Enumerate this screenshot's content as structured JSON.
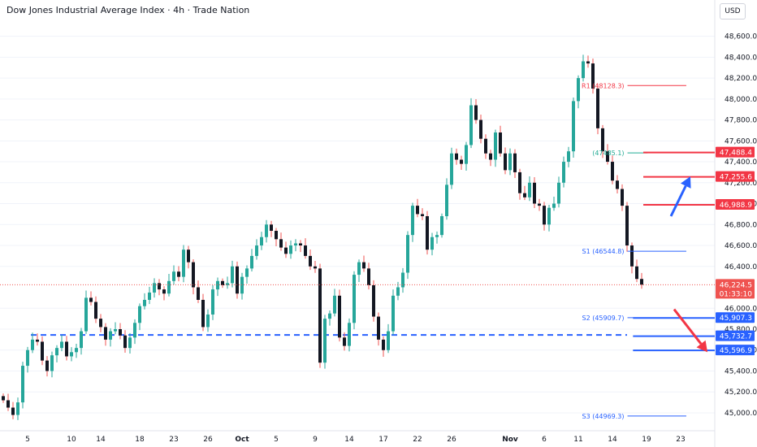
{
  "header": {
    "title": "Dow Jones Industrial Average Index · 4h · Trade Nation",
    "currency": "USD"
  },
  "chart_data": {
    "type": "candlestick",
    "y_range": [
      44860,
      48760
    ],
    "y_ticks": [
      {
        "v": 48600,
        "label": "48,600.0"
      },
      {
        "v": 48400,
        "label": "48,400.0"
      },
      {
        "v": 48200,
        "label": "48,200.0"
      },
      {
        "v": 48000,
        "label": "48,000.0"
      },
      {
        "v": 47800,
        "label": "47,800.0"
      },
      {
        "v": 47600,
        "label": "47,600.0"
      },
      {
        "v": 47400,
        "label": "47,400.0"
      },
      {
        "v": 47200,
        "label": "47,200.0"
      },
      {
        "v": 47000,
        "label": "47,000.0"
      },
      {
        "v": 46800,
        "label": "46,800.0"
      },
      {
        "v": 46600,
        "label": "46,600.0"
      },
      {
        "v": 46400,
        "label": "46,400.0"
      },
      {
        "v": 46000,
        "label": "46,000.0"
      },
      {
        "v": 45800,
        "label": "45,800.0"
      },
      {
        "v": 45600,
        "label": "45,600.0"
      },
      {
        "v": 45400,
        "label": "45,400.0"
      },
      {
        "v": 45200,
        "label": "45,200.0"
      },
      {
        "v": 45000,
        "label": "45,000.0"
      }
    ],
    "x_ticks": [
      {
        "i": 5,
        "label": "5"
      },
      {
        "i": 14,
        "label": "10"
      },
      {
        "i": 20,
        "label": "14"
      },
      {
        "i": 28,
        "label": "18"
      },
      {
        "i": 35,
        "label": "23"
      },
      {
        "i": 42,
        "label": "26"
      },
      {
        "i": 49,
        "label": "Oct"
      },
      {
        "i": 56,
        "label": "5"
      },
      {
        "i": 64,
        "label": "9"
      },
      {
        "i": 71,
        "label": "14"
      },
      {
        "i": 78,
        "label": "17"
      },
      {
        "i": 85,
        "label": "22"
      },
      {
        "i": 92,
        "label": "26"
      },
      {
        "i": 104,
        "label": "Nov"
      },
      {
        "i": 111,
        "label": "6"
      },
      {
        "i": 118,
        "label": "11"
      },
      {
        "i": 125,
        "label": "14"
      },
      {
        "i": 132,
        "label": "19"
      },
      {
        "i": 139,
        "label": "23"
      }
    ],
    "x_bold_ticks": [
      "Oct",
      "Nov"
    ],
    "close_series": [
      45120,
      45050,
      44980,
      45100,
      45450,
      45600,
      45700,
      45680,
      45500,
      45400,
      45550,
      45620,
      45680,
      45540,
      45580,
      45620,
      45780,
      46100,
      46060,
      45900,
      45820,
      45700,
      45780,
      45800,
      45740,
      45620,
      45720,
      45860,
      46020,
      46080,
      46150,
      46240,
      46180,
      46140,
      46260,
      46350,
      46300,
      46560,
      46440,
      46200,
      46080,
      45820,
      45940,
      46180,
      46260,
      46220,
      46240,
      46400,
      46140,
      46300,
      46380,
      46500,
      46600,
      46680,
      46800,
      46740,
      46660,
      46580,
      46520,
      46600,
      46620,
      46600,
      46500,
      46400,
      46380,
      45480,
      45900,
      45950,
      46120,
      45720,
      45640,
      45860,
      46320,
      46440,
      46380,
      46220,
      45920,
      45700,
      45600,
      45780,
      46120,
      46200,
      46340,
      46700,
      46980,
      46900,
      46880,
      46560,
      46680,
      46700,
      46880,
      47180,
      47480,
      47420,
      47380,
      47560,
      47940,
      47800,
      47620,
      47480,
      47420,
      47680,
      47480,
      47320,
      47480,
      47300,
      47100,
      47060,
      47200,
      47000,
      46980,
      46800,
      46960,
      47000,
      47200,
      47400,
      47500,
      47980,
      48200,
      48360,
      48340,
      48100,
      47720,
      47500,
      47400,
      47220,
      47140,
      46980,
      46600,
      46400,
      46280,
      46225
    ],
    "current_price": {
      "value": 46224.5,
      "label": "46,224.5",
      "countdown": "01:33:10"
    },
    "pivots": [
      {
        "name": "R1",
        "value": 48128.3,
        "label": "R1 (48128.3)",
        "color": "#f23645",
        "x0": 0.8289,
        "x1": 0.9066
      },
      {
        "name": "P",
        "value": 47485.1,
        "label": "(47485.1)",
        "color": "#22ab94",
        "x0": 0.8289,
        "x1": 0.8554
      },
      {
        "name": "S1",
        "value": 46544.8,
        "label": "S1 (46544.8)",
        "color": "#2962ff",
        "x0": 0.8289,
        "x1": 0.9066
      },
      {
        "name": "S2",
        "value": 45909.7,
        "label": "S2 (45909.7)",
        "color": "#2962ff",
        "x0": 0.8289,
        "x1": 0.9066
      },
      {
        "name": "S3",
        "value": 44969.3,
        "label": "S3 (44969.3)",
        "color": "#2962ff",
        "x0": 0.8289,
        "x1": 0.9066
      }
    ],
    "resistance_levels": [
      {
        "value": 47488.4,
        "label": "47,488.4",
        "x0": 0.8498
      },
      {
        "value": 47255.6,
        "label": "47,255.6",
        "x0": 0.8498
      },
      {
        "value": 46988.9,
        "label": "46,988.9",
        "x0": 0.8498
      }
    ],
    "support_levels": [
      {
        "value": 45907.3,
        "label": "45,907.3",
        "x0": 0.8362
      },
      {
        "value": 45732.7,
        "label": "45,732.7",
        "x0": 0.8362
      },
      {
        "value": 45596.9,
        "label": "45,596.9",
        "x0": 0.8362
      }
    ],
    "dashed_support": {
      "value": 45745,
      "color": "#2962ff"
    },
    "arrows": [
      {
        "direction": "up",
        "color": "#2962ff",
        "from": {
          "x": 0.8863,
          "y": 46880
        },
        "to": {
          "x": 0.912,
          "y": 47260
        }
      },
      {
        "direction": "down",
        "color": "#f23645",
        "from": {
          "x": 0.8905,
          "y": 45990
        },
        "to": {
          "x": 0.9346,
          "y": 45580
        }
      }
    ],
    "colors": {
      "up": "#26a69a",
      "down": "#ef5350",
      "candle": "#131722",
      "resistance": "#f23645",
      "support": "#2962ff",
      "grid": "#f0f3fa"
    }
  }
}
